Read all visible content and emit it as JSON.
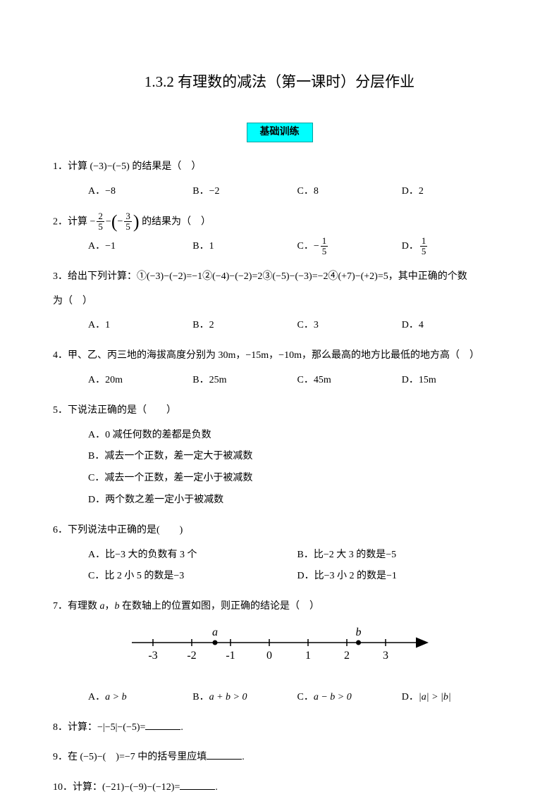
{
  "title": "1.3.2 有理数的减法（第一课时）分层作业",
  "section_banner": "基础训练",
  "q1": {
    "stem_pre": "1．计算 (−3)−(−5) 的结果是（　）",
    "A": "A．−8",
    "B": "B．−2",
    "C": "C．8",
    "D": "D．2"
  },
  "q2": {
    "stem_pre": "2．计算 ",
    "stem_post": " 的结果为（　）",
    "frac1_num": "2",
    "frac1_den": "5",
    "frac2_num": "3",
    "frac2_den": "5",
    "A": "A．−1",
    "B": "B．1",
    "C_pre": "C．",
    "C_frac_num": "1",
    "C_frac_den": "5",
    "D_pre": "D．",
    "D_frac_num": "1",
    "D_frac_den": "5"
  },
  "q3": {
    "stem1": "3．给出下列计算：①(−3)−(−2)=−1②(−4)−(−2)=2③(−5)−(−3)=−2④(+7)−(+2)=5，其中正确的个数",
    "stem2": "为（　）",
    "A": "A．1",
    "B": "B．2",
    "C": "C．3",
    "D": "D．4"
  },
  "q4": {
    "stem": "4．甲、乙、丙三地的海拔高度分别为 30m，−15m，−10m，那么最高的地方比最低的地方高（　）",
    "A": "A．20m",
    "B": "B．25m",
    "C": "C．45m",
    "D": "D．15m"
  },
  "q5": {
    "stem": "5．下说法正确的是（　　）",
    "A": "A．0 减任何数的差都是负数",
    "B": "B．减去一个正数，差一定大于被减数",
    "C": "C．减去一个正数，差一定小于被减数",
    "D": "D．两个数之差一定小于被减数"
  },
  "q6": {
    "stem": "6．下列说法中正确的是(　　)",
    "A": "A．比−3 大的负数有 3 个",
    "B": "B．比−2 大 3 的数是−5",
    "C": "C．比 2 小 5 的数是−3",
    "D": "D．比−3 小 2 的数是−1"
  },
  "q7": {
    "stem_pre": "7．有理数 ",
    "var_a": "a",
    "stem_mid1": "，",
    "var_b": "b",
    "stem_post": " 在数轴上的位置如图，则正确的结论是（　）",
    "numberline": {
      "ticks": [
        -3,
        -2,
        -1,
        0,
        1,
        2,
        3
      ],
      "a_label": "a",
      "a_pos": -1.4,
      "b_label": "b",
      "b_pos": 2.3
    },
    "A_pre": "A．",
    "A_expr": "a > b",
    "B_pre": "B．",
    "B_expr": "a + b > 0",
    "C_pre": "C．",
    "C_expr": "a − b > 0",
    "D_pre": "D．",
    "D_expr": "|a| > |b|"
  },
  "q8": {
    "stem": "8．计算：−|−5|−(−5)=",
    "tail": "."
  },
  "q9": {
    "stem": "9．在 (−5)−(　)=−7 中的括号里应填",
    "tail": "."
  },
  "q10": {
    "stem": "10．计算：(−21)−(−9)−(−12)=",
    "tail": "."
  }
}
